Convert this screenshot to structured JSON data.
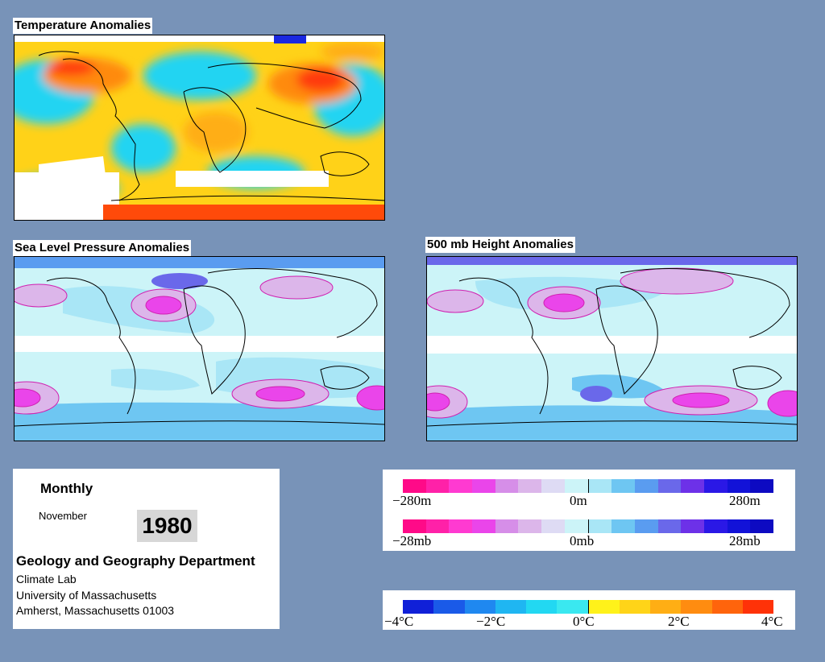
{
  "maps": {
    "temperature": {
      "title": "Temperature Anomalies"
    },
    "slp": {
      "title": "Sea Level Pressure Anomalies"
    },
    "height500": {
      "title": "500 mb Height Anomalies"
    }
  },
  "info": {
    "frequency": "Monthly",
    "month": "November",
    "year": "1980",
    "department": "Geology and Geography Department",
    "lab": "Climate Lab",
    "university": "University of Massachusetts",
    "address": "Amherst, Massachusetts 01003"
  },
  "legends": {
    "height": {
      "min": "−280m",
      "mid": "0m",
      "max": "280m"
    },
    "pressure": {
      "min": "−28mb",
      "mid": "0mb",
      "max": "28mb"
    },
    "temperature": {
      "labels": [
        "−4°C",
        "−2°C",
        "0°C",
        "2°C",
        "4°C"
      ]
    },
    "anomaly_colors": [
      "#ff0a88",
      "#ff21a8",
      "#ff3ad1",
      "#ea45ea",
      "#d68ee8",
      "#dcb6ea",
      "#dedbf4",
      "#ccf4f8",
      "#a9e6f6",
      "#6ec6f2",
      "#5a9cf0",
      "#6a68ea",
      "#6d31e8",
      "#2a18e6",
      "#1212d8",
      "#0d0ac2"
    ],
    "temperature_colors": [
      "#1020d8",
      "#1a5ae8",
      "#1f88f0",
      "#1fb6f2",
      "#22d8f2",
      "#3ae8f0",
      "#fff21a",
      "#ffd418",
      "#ffae14",
      "#ff8c10",
      "#ff640c",
      "#ff3208"
    ]
  }
}
